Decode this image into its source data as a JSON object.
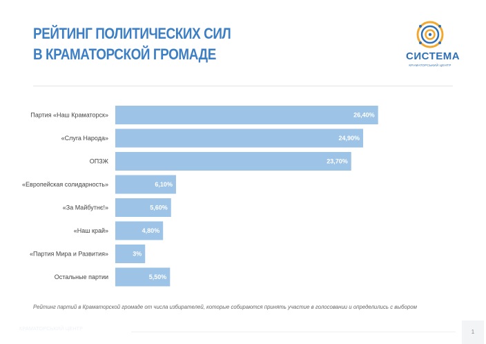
{
  "header": {
    "title_line1": "РЕЙТИНГ ПОЛИТИЧЕСКИХ СИЛ",
    "title_line2": "В КРАМАТОРСКОЙ ГРОМАДЕ",
    "logo_word": "СИСТЕМА",
    "logo_sub": "КРАМАТОРСЬКИЙ ЦЕНТР"
  },
  "colors": {
    "accent": "#3d7fc4",
    "bar": "#9dc3e6"
  },
  "chart_data": {
    "type": "bar",
    "orientation": "horizontal",
    "categories": [
      "Партия «Наш Краматорск»",
      "«Слуга Народа»",
      "ОПЗЖ",
      "«Европейская солидарность»",
      "«За Майбутнє!»",
      "«Наш край»",
      "«Партия Мира и Развития»",
      "Остальные партии"
    ],
    "values": [
      26.4,
      24.9,
      23.7,
      6.1,
      5.6,
      4.8,
      3,
      5.5
    ],
    "value_labels": [
      "26,40%",
      "24,90%",
      "23,70%",
      "6,10%",
      "5,60%",
      "4,80%",
      "3%",
      "5,50%"
    ],
    "xlim": [
      0,
      30
    ],
    "grid": false,
    "legend": "none"
  },
  "caption": "Рейтинг партий в Краматорской громаде от числа избирателей, которые собираются принять участие в голосовании и определились с выбором",
  "footer": {
    "text": "КРАМАТОРСЬКИЙ ЦЕНТР",
    "page": "1"
  }
}
